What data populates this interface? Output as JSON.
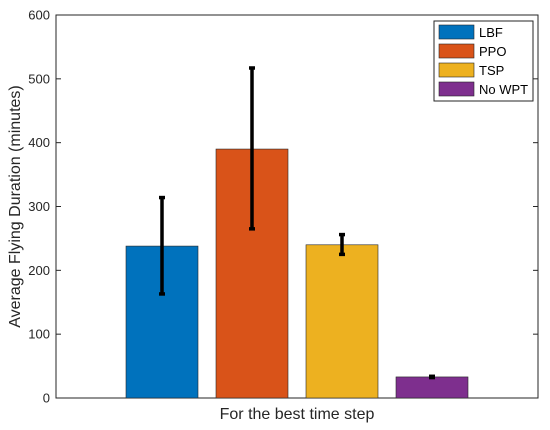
{
  "chart_data": {
    "type": "bar",
    "title": "",
    "xlabel": "For the best time step",
    "ylabel": "Average Flying Duration (minutes)",
    "ylim": [
      0,
      600
    ],
    "yticks": [
      0,
      100,
      200,
      300,
      400,
      500,
      600
    ],
    "grid": false,
    "legend_position": "top-right",
    "series": [
      {
        "name": "LBF",
        "value": 238,
        "error_low": 163,
        "error_high": 314,
        "color": "#0072BD"
      },
      {
        "name": "PPO",
        "value": 390,
        "error_low": 265,
        "error_high": 517,
        "color": "#D95319"
      },
      {
        "name": "TSP",
        "value": 240,
        "error_low": 225,
        "error_high": 256,
        "color": "#EDB120"
      },
      {
        "name": "No WPT",
        "value": 33,
        "error_low": 32,
        "error_high": 34,
        "color": "#7E2F8E"
      }
    ]
  }
}
